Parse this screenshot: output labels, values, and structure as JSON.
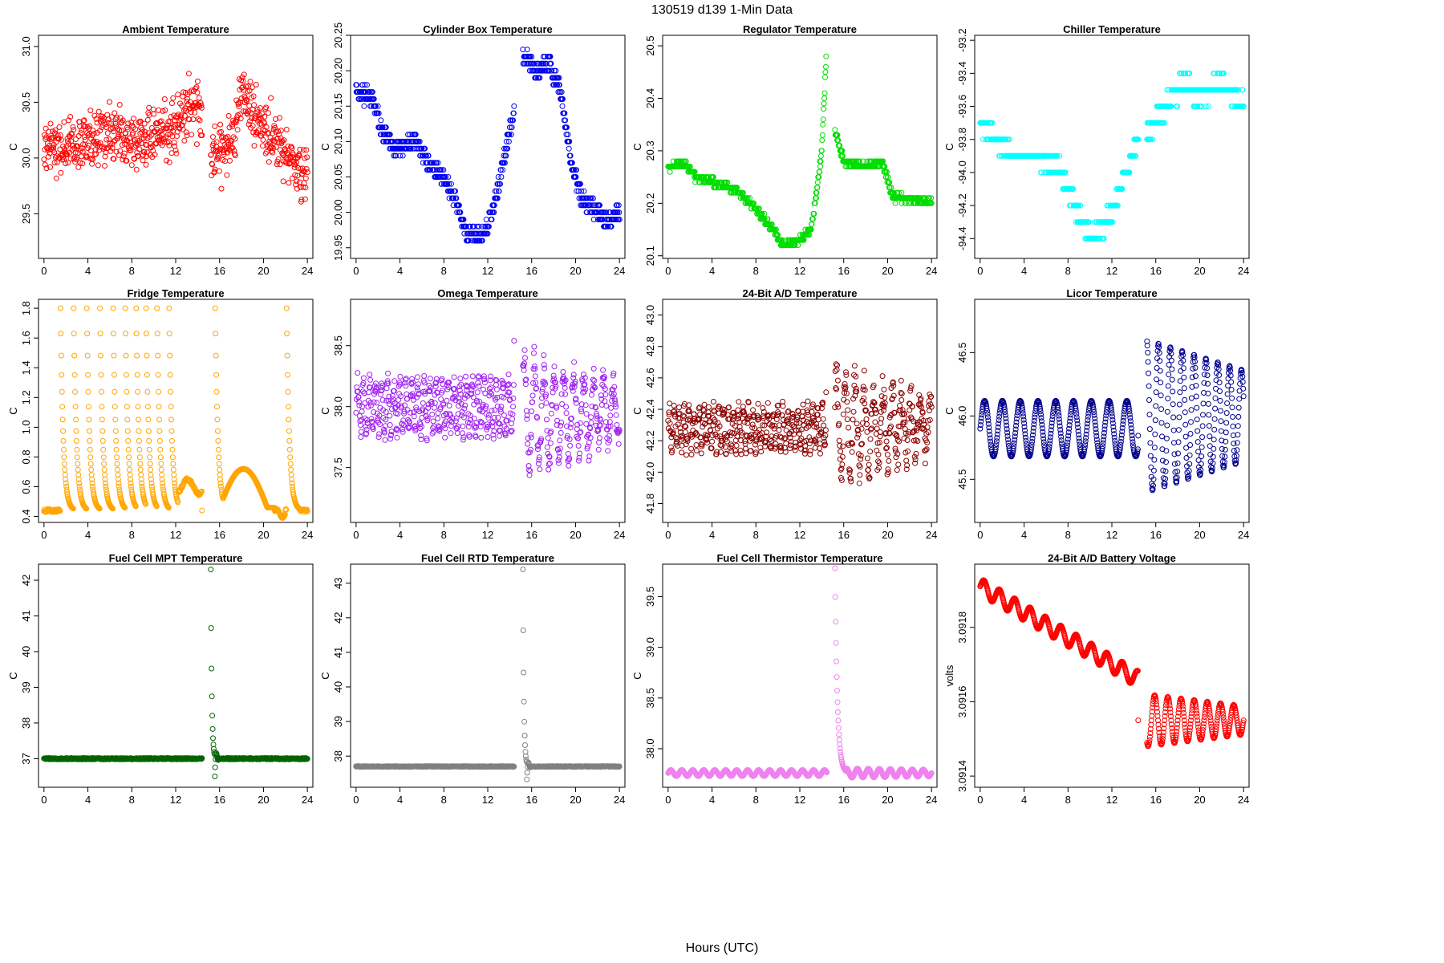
{
  "figure": {
    "title": "130519   d139   1-Min Data",
    "xlabel": "Hours (UTC)"
  },
  "chart_data": [
    {
      "type": "scatter",
      "title": "Ambient Temperature",
      "ylabel": "C",
      "color": "#ff0000",
      "xlim": [
        -0.5,
        24.5
      ],
      "ylim": [
        29.1,
        31.1
      ],
      "xticks": [
        0,
        4,
        8,
        12,
        16,
        20,
        24
      ],
      "yticks": [
        "29.5",
        "30.0",
        "30.5",
        "31.0"
      ],
      "gen": {
        "kind": "noisy",
        "gap": [
          14.4,
          15.2
        ],
        "seed": 1,
        "base": [
          [
            0,
            30.05
          ],
          [
            4,
            30.2
          ],
          [
            8,
            30.15
          ],
          [
            12,
            30.25
          ],
          [
            13.5,
            30.5
          ],
          [
            14.4,
            30.4
          ],
          [
            15.2,
            30.0
          ],
          [
            17,
            30.1
          ],
          [
            18,
            30.6
          ],
          [
            20,
            30.25
          ],
          [
            22,
            30.05
          ],
          [
            24,
            29.85
          ]
        ],
        "amp": 0.28
      }
    },
    {
      "type": "scatter",
      "title": "Cylinder Box Temperature",
      "ylabel": "C",
      "color": "#0000ee",
      "xlim": [
        -0.5,
        24.5
      ],
      "ylim": [
        19.935,
        20.25
      ],
      "xticks": [
        0,
        4,
        8,
        12,
        16,
        20,
        24
      ],
      "yticks": [
        "19.95",
        "20.00",
        "20.05",
        "20.10",
        "20.15",
        "20.20",
        "20.25"
      ],
      "gen": {
        "kind": "quant",
        "gap": [
          14.4,
          15.2
        ],
        "seed": 2,
        "step": 0.01,
        "noise": 0.012,
        "base": [
          [
            0,
            20.17
          ],
          [
            1.5,
            20.16
          ],
          [
            2.5,
            20.11
          ],
          [
            3.5,
            20.09
          ],
          [
            5.5,
            20.1
          ],
          [
            6.5,
            20.07
          ],
          [
            8,
            20.05
          ],
          [
            9,
            20.02
          ],
          [
            10,
            19.97
          ],
          [
            11,
            19.97
          ],
          [
            12,
            19.98
          ],
          [
            13,
            20.04
          ],
          [
            14.2,
            20.13
          ],
          [
            15.2,
            20.22
          ],
          [
            16.5,
            20.2
          ],
          [
            17.5,
            20.21
          ],
          [
            18.5,
            20.18
          ],
          [
            19.5,
            20.08
          ],
          [
            20.5,
            20.02
          ],
          [
            22,
            20.0
          ],
          [
            23,
            19.985
          ],
          [
            24,
            20.0
          ]
        ]
      }
    },
    {
      "type": "scatter",
      "title": "Regulator Temperature",
      "ylabel": "C",
      "color": "#00dd00",
      "xlim": [
        -0.5,
        24.5
      ],
      "ylim": [
        20.095,
        20.52
      ],
      "xticks": [
        0,
        4,
        8,
        12,
        16,
        20,
        24
      ],
      "yticks": [
        "20.1",
        "20.2",
        "20.3",
        "20.4",
        "20.5"
      ],
      "gen": {
        "kind": "quant",
        "gap": [
          14.4,
          15.2
        ],
        "seed": 3,
        "step": 0.01,
        "noise": 0.006,
        "base": [
          [
            0,
            20.27
          ],
          [
            1.5,
            20.275
          ],
          [
            2.5,
            20.25
          ],
          [
            5,
            20.235
          ],
          [
            6.5,
            20.22
          ],
          [
            8,
            20.19
          ],
          [
            9.5,
            20.15
          ],
          [
            10.5,
            20.12
          ],
          [
            12,
            20.13
          ],
          [
            13,
            20.15
          ],
          [
            13.4,
            20.2
          ],
          [
            14.0,
            20.3
          ],
          [
            14.4,
            20.48
          ],
          [
            15.2,
            20.34
          ],
          [
            16.0,
            20.28
          ],
          [
            18,
            20.27
          ],
          [
            19.5,
            20.28
          ],
          [
            20.5,
            20.21
          ],
          [
            22,
            20.21
          ],
          [
            24,
            20.2
          ]
        ]
      }
    },
    {
      "type": "scatter",
      "title": "Chiller Temperature",
      "ylabel": "C",
      "color": "#00ffff",
      "xlim": [
        -0.5,
        24.5
      ],
      "ylim": [
        -94.52,
        -93.17
      ],
      "xticks": [
        0,
        4,
        8,
        12,
        16,
        20,
        24
      ],
      "yticks": [
        "-94.4",
        "-94.2",
        "-94.0",
        "-93.8",
        "-93.6",
        "-93.4",
        "-93.2"
      ],
      "gen": {
        "kind": "quant",
        "gap": [
          14.4,
          15.2
        ],
        "seed": 4,
        "step": 0.1,
        "noise": 0.05,
        "base": [
          [
            0,
            -93.7
          ],
          [
            1.5,
            -93.8
          ],
          [
            3,
            -93.9
          ],
          [
            5,
            -93.9
          ],
          [
            7,
            -93.95
          ],
          [
            8,
            -94.1
          ],
          [
            9,
            -94.25
          ],
          [
            10,
            -94.4
          ],
          [
            11,
            -94.35
          ],
          [
            12,
            -94.25
          ],
          [
            13,
            -94.05
          ],
          [
            14.4,
            -93.8
          ],
          [
            15.2,
            -93.75
          ],
          [
            17,
            -93.6
          ],
          [
            18.5,
            -93.45
          ],
          [
            20,
            -93.55
          ],
          [
            22,
            -93.45
          ],
          [
            24,
            -93.6
          ]
        ]
      }
    },
    {
      "type": "scatter",
      "title": "Fridge Temperature",
      "ylabel": "C",
      "color": "#ffa500",
      "xlim": [
        -0.5,
        24.5
      ],
      "ylim": [
        0.36,
        1.86
      ],
      "xticks": [
        0,
        4,
        8,
        12,
        16,
        20,
        24
      ],
      "yticks": [
        "0.4",
        "0.6",
        "0.8",
        "1.0",
        "1.2",
        "1.4",
        "1.6",
        "1.8"
      ],
      "gen": {
        "kind": "fridge",
        "gap": [
          14.4,
          15.6
        ],
        "seed": 5,
        "base_level": 0.44,
        "peak": 1.8,
        "spikes": [
          1.5,
          2.7,
          3.9,
          5.1,
          6.3,
          7.4,
          8.4,
          9.3,
          10.3,
          11.4,
          15.6,
          22.1
        ],
        "bump": {
          "start": 16.0,
          "center": 18.2,
          "end": 21.0,
          "height": 0.72
        }
      }
    },
    {
      "type": "scatter",
      "title": "Omega Temperature",
      "ylabel": "C",
      "color": "#a020f0",
      "xlim": [
        -0.5,
        24.5
      ],
      "ylim": [
        37.05,
        38.88
      ],
      "xticks": [
        0,
        4,
        8,
        12,
        16,
        20,
        24
      ],
      "yticks": [
        "37.5",
        "38.0",
        "38.5"
      ],
      "gen": {
        "kind": "wave",
        "gap": [
          14.4,
          15.2
        ],
        "seed": 6,
        "pre": {
          "mean": 38.0,
          "amp": 0.2,
          "period": 0.55,
          "noise": 0.08
        },
        "post": {
          "mean": 37.95,
          "amp": 0.55,
          "decay": [
            0.85,
            0.35
          ],
          "period": 0.9,
          "noise": 0.12
        }
      }
    },
    {
      "type": "scatter",
      "title": "24-Bit A/D Temperature",
      "ylabel": "C",
      "color": "#8b0000",
      "xlim": [
        -0.5,
        24.5
      ],
      "ylim": [
        41.68,
        43.1
      ],
      "xticks": [
        0,
        4,
        8,
        12,
        16,
        20,
        24
      ],
      "yticks": [
        "41.8",
        "42.0",
        "42.2",
        "42.4",
        "42.6",
        "42.8",
        "43.0"
      ],
      "gen": {
        "kind": "wave",
        "gap": [
          14.4,
          15.2
        ],
        "seed": 7,
        "pre": {
          "mean": 42.28,
          "amp": 0.12,
          "period": 0.45,
          "noise": 0.06
        },
        "post": {
          "mean": 42.3,
          "amp": 0.45,
          "decay": [
            0.7,
            0.28
          ],
          "period": 0.85,
          "noise": 0.12
        }
      }
    },
    {
      "type": "scatter",
      "title": "Licor Temperature",
      "ylabel": "C",
      "color": "#00008b",
      "xlim": [
        -0.5,
        24.5
      ],
      "ylim": [
        45.16,
        46.92
      ],
      "xticks": [
        0,
        4,
        8,
        12,
        16,
        20,
        24
      ],
      "yticks": [
        "45.5",
        "46.0",
        "46.5"
      ],
      "gen": {
        "kind": "wave",
        "gap": [
          14.4,
          15.2
        ],
        "seed": 8,
        "pre": {
          "mean": 45.9,
          "amp": 0.22,
          "period": 1.62,
          "noise": 0.0
        },
        "post": {
          "mean": 46.0,
          "amp": 0.75,
          "decay": [
            0.8,
            0.48
          ],
          "period": 1.08,
          "noise": 0.0
        }
      }
    },
    {
      "type": "scatter",
      "title": "Fuel Cell MPT Temperature",
      "ylabel": "C",
      "color": "#006400",
      "xlim": [
        -0.5,
        24.5
      ],
      "ylim": [
        36.2,
        42.45
      ],
      "xticks": [
        0,
        4,
        8,
        12,
        16,
        20,
        24
      ],
      "yticks": [
        "37",
        "38",
        "39",
        "40",
        "41",
        "42"
      ],
      "gen": {
        "kind": "flatspike",
        "gap": [
          14.4,
          15.2
        ],
        "seed": 9,
        "level": 37.0,
        "spike_x": 15.3,
        "spike_top": 42.3,
        "spike_bottom": 36.4,
        "noise": 0.02
      }
    },
    {
      "type": "scatter",
      "title": "Fuel Cell RTD Temperature",
      "ylabel": "C",
      "color": "#808080",
      "xlim": [
        -0.5,
        24.5
      ],
      "ylim": [
        37.1,
        43.55
      ],
      "xticks": [
        0,
        4,
        8,
        12,
        16,
        20,
        24
      ],
      "yticks": [
        "38",
        "39",
        "40",
        "41",
        "42",
        "43"
      ],
      "gen": {
        "kind": "flatspike",
        "gap": [
          14.4,
          15.2
        ],
        "seed": 10,
        "level": 37.7,
        "spike_x": 15.3,
        "spike_top": 43.4,
        "spike_bottom": 37.25,
        "noise": 0.01
      }
    },
    {
      "type": "scatter",
      "title": "Fuel Cell Thermistor Temperature",
      "ylabel": "C",
      "color": "#ee82ee",
      "xlim": [
        -0.5,
        24.5
      ],
      "ylim": [
        37.62,
        39.82
      ],
      "xticks": [
        0,
        4,
        8,
        12,
        16,
        20,
        24
      ],
      "yticks": [
        "38.0",
        "38.5",
        "39.0",
        "39.5"
      ],
      "gen": {
        "kind": "thermistor",
        "gap": [
          14.5,
          15.2
        ],
        "seed": 11,
        "level": 37.76,
        "amp": 0.03,
        "period": 1.0,
        "spike_top": 39.78
      }
    },
    {
      "type": "scatter",
      "title": "24-Bit A/D Battery Voltage",
      "ylabel": "volts",
      "color": "#ff0000",
      "xlim": [
        -0.5,
        24.5
      ],
      "ylim": [
        3.09137,
        3.09197
      ],
      "xticks": [
        0,
        4,
        8,
        12,
        16,
        20,
        24
      ],
      "yticks": [
        "3.0914",
        "3.0916",
        "3.0918"
      ],
      "gen": {
        "kind": "battery",
        "gap": [
          14.4,
          15.2
        ],
        "seed": 12,
        "pre": {
          "start": 3.09191,
          "end": 3.09166,
          "amp": 2.25e-05,
          "period": 1.4
        },
        "post": {
          "start": 3.09155,
          "end": 3.09155,
          "amp": 7e-05,
          "decay": [
            1.0,
            0.55
          ],
          "period": 1.2
        }
      }
    }
  ]
}
